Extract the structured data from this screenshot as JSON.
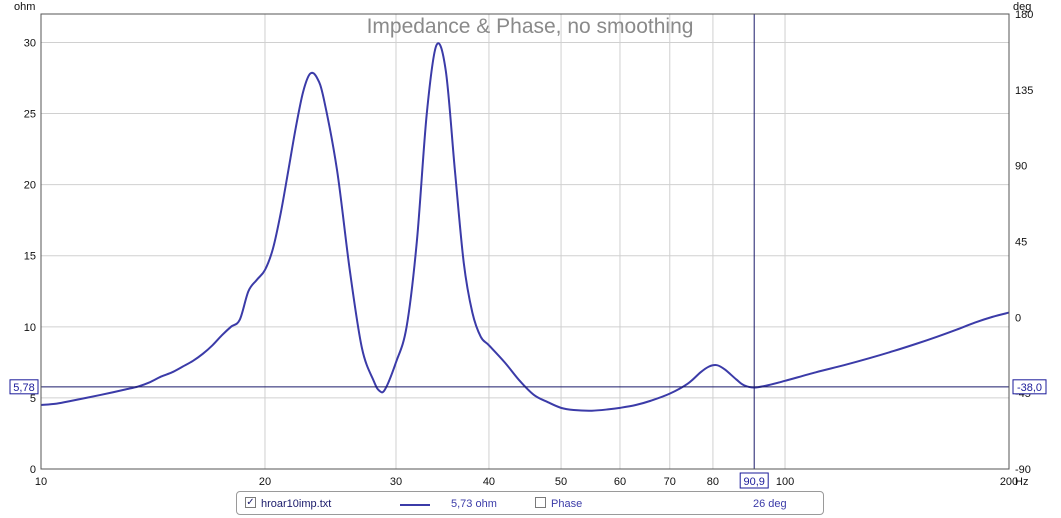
{
  "chart_data": {
    "type": "line",
    "title": "Impedance & Phase, no smoothing",
    "x_unit": "Hz",
    "y_left_unit": "ohm",
    "y_right_unit": "deg",
    "x_scale": "log",
    "xlim": [
      10,
      200
    ],
    "ylim_left": [
      0,
      32
    ],
    "ylim_right": [
      -90,
      180
    ],
    "x_ticks": [
      10,
      20,
      30,
      40,
      50,
      60,
      70,
      80,
      100,
      200
    ],
    "x_tick_labels": [
      "10",
      "20",
      "30",
      "40",
      "50",
      "60",
      "70",
      "80",
      "100",
      "200"
    ],
    "y_left_ticks": [
      0,
      5,
      10,
      15,
      20,
      25,
      30
    ],
    "y_left_tick_labels": [
      "0",
      "5",
      "10",
      "15",
      "20",
      "25",
      "30"
    ],
    "y_right_ticks": [
      -90,
      -45,
      0,
      45,
      90,
      135,
      180
    ],
    "y_right_tick_labels": [
      "-90",
      "-45",
      "0",
      "45",
      "90",
      "135",
      "180"
    ],
    "grid": true,
    "cursor": {
      "x": 90.9,
      "x_label": "90,9",
      "y_left": 5.78,
      "y_left_label": "5,78",
      "y_right_label": "-38,0"
    },
    "series": [
      {
        "name": "hroar10imp.txt",
        "color": "#3b3ba8",
        "points": [
          [
            10,
            4.5
          ],
          [
            10.5,
            4.6
          ],
          [
            11,
            4.8
          ],
          [
            11.5,
            5.0
          ],
          [
            12,
            5.2
          ],
          [
            12.5,
            5.4
          ],
          [
            13,
            5.6
          ],
          [
            13.5,
            5.8
          ],
          [
            14,
            6.1
          ],
          [
            14.5,
            6.5
          ],
          [
            15,
            6.8
          ],
          [
            15.5,
            7.2
          ],
          [
            16,
            7.6
          ],
          [
            16.5,
            8.1
          ],
          [
            17,
            8.7
          ],
          [
            17.5,
            9.4
          ],
          [
            18,
            10.0
          ],
          [
            18.5,
            10.5
          ],
          [
            19,
            12.5
          ],
          [
            19.5,
            13.3
          ],
          [
            20,
            14.0
          ],
          [
            20.5,
            15.5
          ],
          [
            21,
            18.0
          ],
          [
            21.5,
            21.0
          ],
          [
            22,
            24.0
          ],
          [
            22.5,
            26.5
          ],
          [
            23,
            27.8
          ],
          [
            23.5,
            27.5
          ],
          [
            24,
            26.0
          ],
          [
            25,
            21.0
          ],
          [
            26,
            14.0
          ],
          [
            27,
            8.5
          ],
          [
            28,
            6.2
          ],
          [
            28.5,
            5.5
          ],
          [
            29,
            5.6
          ],
          [
            30,
            7.5
          ],
          [
            31,
            10.0
          ],
          [
            32,
            16.0
          ],
          [
            33,
            25.0
          ],
          [
            34,
            29.8
          ],
          [
            35,
            28.0
          ],
          [
            36,
            21.0
          ],
          [
            37,
            14.5
          ],
          [
            38,
            11.0
          ],
          [
            39,
            9.3
          ],
          [
            40,
            8.7
          ],
          [
            42,
            7.5
          ],
          [
            44,
            6.2
          ],
          [
            46,
            5.2
          ],
          [
            48,
            4.7
          ],
          [
            50,
            4.3
          ],
          [
            52,
            4.15
          ],
          [
            55,
            4.1
          ],
          [
            58,
            4.2
          ],
          [
            60,
            4.3
          ],
          [
            63,
            4.5
          ],
          [
            66,
            4.8
          ],
          [
            70,
            5.3
          ],
          [
            74,
            6.0
          ],
          [
            77,
            6.8
          ],
          [
            79,
            7.2
          ],
          [
            81,
            7.3
          ],
          [
            83,
            7.0
          ],
          [
            86,
            6.3
          ],
          [
            88,
            5.9
          ],
          [
            90.9,
            5.73
          ],
          [
            95,
            5.9
          ],
          [
            100,
            6.2
          ],
          [
            110,
            6.8
          ],
          [
            120,
            7.3
          ],
          [
            130,
            7.8
          ],
          [
            140,
            8.3
          ],
          [
            150,
            8.8
          ],
          [
            160,
            9.3
          ],
          [
            170,
            9.8
          ],
          [
            180,
            10.3
          ],
          [
            190,
            10.7
          ],
          [
            200,
            11.0
          ]
        ]
      }
    ]
  },
  "legend": {
    "impedance_checked": true,
    "impedance_name": "hroar10imp.txt",
    "impedance_value": "5,73 ohm",
    "phase_checked": false,
    "phase_name": "Phase",
    "phase_value": "26 deg"
  }
}
